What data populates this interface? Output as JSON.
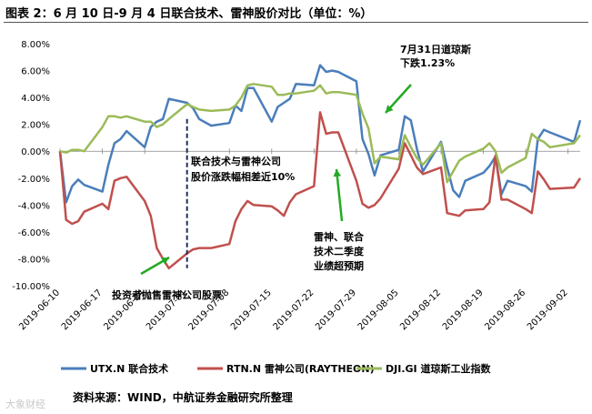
{
  "title": "图表 2：6 月 10 日-9 月 4 日联合技术、雷神股价对比（单位：%）",
  "source": "资料来源：WIND，中航证券金融研究所整理",
  "watermark": "大象财经",
  "chart_data": {
    "type": "line",
    "ylim": [
      -10,
      8
    ],
    "ytick_step": 2,
    "ytick_format": "0.00%",
    "grid": false,
    "legend_position": "bottom",
    "x_start": "2019-06-10",
    "x_end": "2019-09-04",
    "x_ticks": [
      "2019-06-10",
      "2019-06-17",
      "2019-06-24",
      "2019-07-01",
      "2019-07-08",
      "2019-07-15",
      "2019-07-22",
      "2019-07-29",
      "2019-08-05",
      "2019-08-12",
      "2019-08-19",
      "2019-08-26",
      "2019-09-02"
    ],
    "dates": [
      "2019-06-10",
      "2019-06-11",
      "2019-06-12",
      "2019-06-13",
      "2019-06-14",
      "2019-06-17",
      "2019-06-18",
      "2019-06-19",
      "2019-06-20",
      "2019-06-21",
      "2019-06-24",
      "2019-06-25",
      "2019-06-26",
      "2019-06-27",
      "2019-06-28",
      "2019-07-01",
      "2019-07-02",
      "2019-07-03",
      "2019-07-05",
      "2019-07-08",
      "2019-07-09",
      "2019-07-10",
      "2019-07-11",
      "2019-07-12",
      "2019-07-15",
      "2019-07-16",
      "2019-07-17",
      "2019-07-18",
      "2019-07-19",
      "2019-07-22",
      "2019-07-23",
      "2019-07-24",
      "2019-07-25",
      "2019-07-26",
      "2019-07-29",
      "2019-07-30",
      "2019-07-31",
      "2019-08-01",
      "2019-08-02",
      "2019-08-05",
      "2019-08-06",
      "2019-08-07",
      "2019-08-08",
      "2019-08-09",
      "2019-08-12",
      "2019-08-13",
      "2019-08-14",
      "2019-08-15",
      "2019-08-16",
      "2019-08-19",
      "2019-08-20",
      "2019-08-21",
      "2019-08-22",
      "2019-08-23",
      "2019-08-26",
      "2019-08-27",
      "2019-08-28",
      "2019-08-29",
      "2019-08-30",
      "2019-09-03",
      "2019-09-04"
    ],
    "series": [
      {
        "name": "UTX.N 联合技术",
        "color": "#4a7ebb",
        "values": [
          0.0,
          -3.8,
          -2.6,
          -2.1,
          -2.5,
          -3.0,
          -1.0,
          0.6,
          0.9,
          1.5,
          0.3,
          1.8,
          2.2,
          2.4,
          3.9,
          3.6,
          3.2,
          2.4,
          1.9,
          2.1,
          3.4,
          3.0,
          4.7,
          4.7,
          2.2,
          3.3,
          3.6,
          3.9,
          5.0,
          4.9,
          6.4,
          5.9,
          6.0,
          5.9,
          5.2,
          0.9,
          -0.2,
          -1.8,
          -0.3,
          0.1,
          2.6,
          2.3,
          0.2,
          -1.5,
          0.7,
          -1.2,
          -2.9,
          -3.4,
          -2.2,
          -1.6,
          -1.1,
          -0.4,
          -3.2,
          -2.2,
          -2.6,
          -3.0,
          0.9,
          1.6,
          1.4,
          0.7,
          2.3
        ]
      },
      {
        "name": "RTN.N 雷神公司(RAYTHEON)",
        "color": "#c0504d",
        "values": [
          0.0,
          -5.1,
          -5.4,
          -5.2,
          -4.5,
          -3.9,
          -4.3,
          -2.2,
          -2.0,
          -1.9,
          -3.7,
          -4.8,
          -7.2,
          -8.0,
          -8.7,
          -7.6,
          -7.3,
          -7.2,
          -7.2,
          -6.9,
          -5.2,
          -4.3,
          -3.7,
          -4.0,
          -4.1,
          -4.4,
          -4.8,
          -3.8,
          -3.2,
          -2.6,
          2.9,
          1.3,
          1.4,
          1.4,
          -2.2,
          -3.9,
          -4.2,
          -4.0,
          -3.5,
          -1.3,
          0.6,
          -0.3,
          -1.2,
          -1.7,
          -1.2,
          -4.6,
          -4.7,
          -4.8,
          -4.4,
          -4.3,
          -3.8,
          -0.3,
          -3.6,
          -3.6,
          -4.3,
          -4.6,
          -1.5,
          -2.1,
          -2.8,
          -2.7,
          -2.0
        ]
      },
      {
        "name": "DJI.GI 道琼斯工业指数",
        "color": "#9bbb59",
        "values": [
          0.0,
          -0.1,
          0.1,
          0.1,
          0.0,
          1.8,
          2.6,
          2.6,
          2.5,
          2.6,
          2.2,
          2.2,
          1.8,
          2.0,
          2.4,
          3.5,
          3.3,
          3.1,
          3.0,
          3.1,
          3.4,
          4.0,
          4.9,
          5.0,
          4.8,
          4.2,
          4.2,
          4.3,
          4.3,
          4.5,
          4.9,
          4.3,
          4.4,
          4.4,
          4.2,
          2.8,
          1.7,
          -0.9,
          -0.4,
          -0.6,
          1.2,
          0.3,
          -0.5,
          -1.0,
          0.6,
          -2.3,
          -1.5,
          -0.7,
          -0.4,
          0.2,
          0.6,
          0.0,
          -1.6,
          -1.2,
          -0.5,
          1.3,
          0.9,
          0.7,
          0.3,
          0.6,
          1.2
        ]
      }
    ],
    "annotations": {
      "dow_drop": "7月31日道琼斯\n下跌1.23%",
      "gap": "联合技术与雷神公司\n股价涨跌幅相差近10%",
      "earnings": "雷神、联合\n技术二季度\n业绩超预期",
      "sell": "投资者抛售雷神公司股票"
    }
  }
}
